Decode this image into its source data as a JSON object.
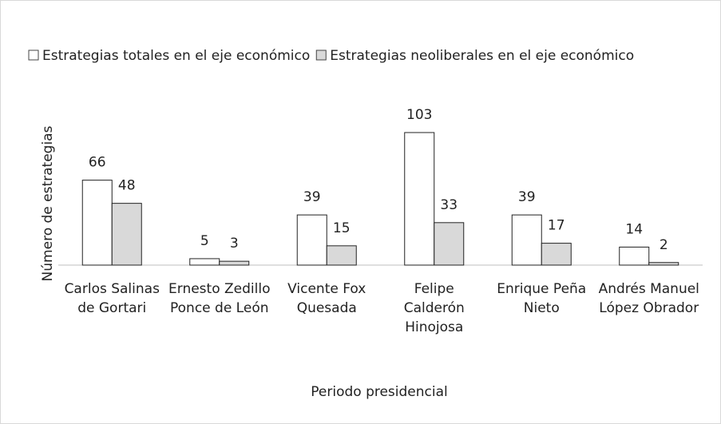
{
  "chart_data": {
    "type": "bar",
    "categories": [
      "Carlos Salinas de Gortari",
      "Ernesto Zedillo Ponce de León",
      "Vicente Fox Quesada",
      "Felipe Calderón Hinojosa",
      "Enrique Peña Nieto",
      "Andrés Manuel López Obrador"
    ],
    "series": [
      {
        "name": "Estrategias totales en el eje económico",
        "color": "#ffffff",
        "values": [
          66,
          5,
          39,
          103,
          39,
          14
        ]
      },
      {
        "name": "Estrategias neoliberales en el eje económico",
        "color": "#d9d9d9",
        "values": [
          48,
          3,
          15,
          33,
          17,
          2
        ]
      }
    ],
    "ylim": [
      0,
      120
    ],
    "xlabel": "Periodo presidencial",
    "ylabel": "Número de estrategias",
    "legend": "top"
  }
}
